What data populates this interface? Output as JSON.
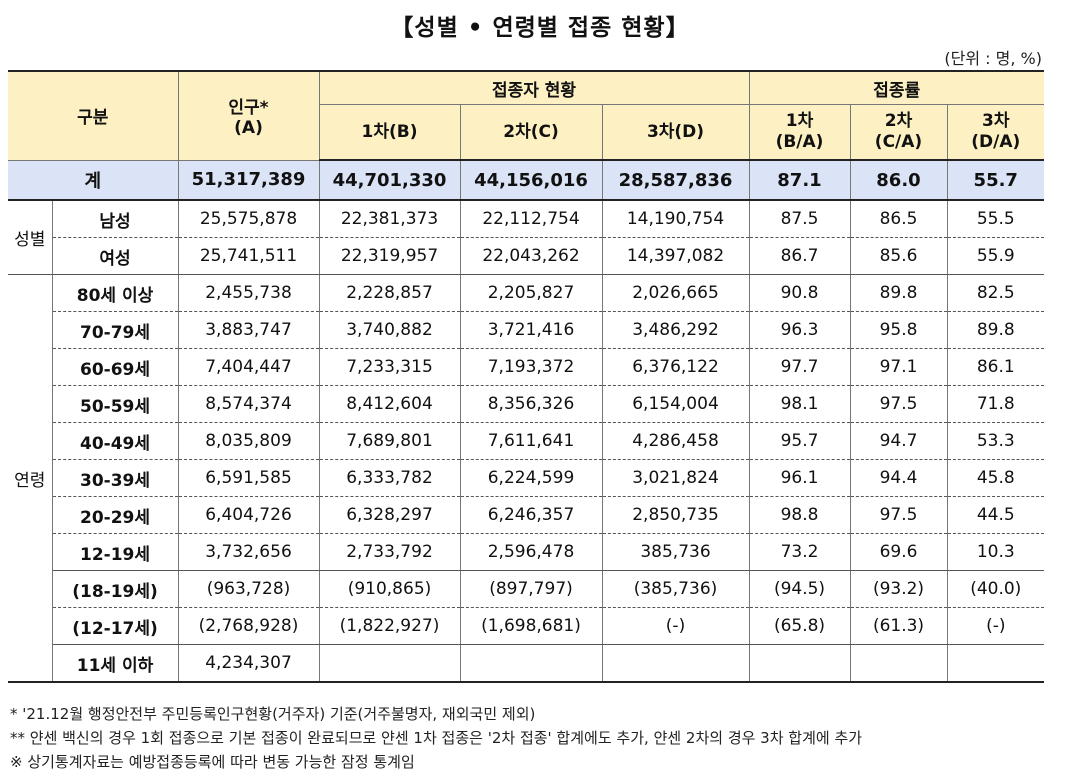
{
  "title": "【성별 • 연령별 접종 현황】",
  "unit": "(단위 : 명, %)",
  "header": {
    "category": "구분",
    "population": "인구*",
    "population_sub": "(A)",
    "vaccinated_group": "접종자 현황",
    "dose1": "1차(B)",
    "dose2": "2차(C)",
    "dose3": "3차(D)",
    "rate_group": "접종률",
    "rate1": "1차",
    "rate1_sub": "(B/A)",
    "rate2": "2차",
    "rate2_sub": "(C/A)",
    "rate3": "3차",
    "rate3_sub": "(D/A)"
  },
  "total": {
    "label": "계",
    "values": [
      "51,317,389",
      "44,701,330",
      "44,156,016",
      "28,587,836",
      "87.1",
      "86.0",
      "55.7"
    ]
  },
  "gender": {
    "group": "성별",
    "rows": [
      {
        "label": "남성",
        "values": [
          "25,575,878",
          "22,381,373",
          "22,112,754",
          "14,190,754",
          "87.5",
          "86.5",
          "55.5"
        ]
      },
      {
        "label": "여성",
        "values": [
          "25,741,511",
          "22,319,957",
          "22,043,262",
          "14,397,082",
          "86.7",
          "85.6",
          "55.9"
        ]
      }
    ]
  },
  "age": {
    "group": "연령",
    "rows": [
      {
        "label": "80세 이상",
        "values": [
          "2,455,738",
          "2,228,857",
          "2,205,827",
          "2,026,665",
          "90.8",
          "89.8",
          "82.5"
        ]
      },
      {
        "label": "70-79세",
        "values": [
          "3,883,747",
          "3,740,882",
          "3,721,416",
          "3,486,292",
          "96.3",
          "95.8",
          "89.8"
        ]
      },
      {
        "label": "60-69세",
        "values": [
          "7,404,447",
          "7,233,315",
          "7,193,372",
          "6,376,122",
          "97.7",
          "97.1",
          "86.1"
        ]
      },
      {
        "label": "50-59세",
        "values": [
          "8,574,374",
          "8,412,604",
          "8,356,326",
          "6,154,004",
          "98.1",
          "97.5",
          "71.8"
        ]
      },
      {
        "label": "40-49세",
        "values": [
          "8,035,809",
          "7,689,801",
          "7,611,641",
          "4,286,458",
          "95.7",
          "94.7",
          "53.3"
        ]
      },
      {
        "label": "30-39세",
        "values": [
          "6,591,585",
          "6,333,782",
          "6,224,599",
          "3,021,824",
          "96.1",
          "94.4",
          "45.8"
        ]
      },
      {
        "label": "20-29세",
        "values": [
          "6,404,726",
          "6,328,297",
          "6,246,357",
          "2,850,735",
          "98.8",
          "97.5",
          "44.5"
        ]
      },
      {
        "label": "12-19세",
        "values": [
          "3,732,656",
          "2,733,792",
          "2,596,478",
          "385,736",
          "73.2",
          "69.6",
          "10.3"
        ]
      }
    ],
    "subrows": [
      {
        "label": "(18-19세)",
        "values": [
          "(963,728)",
          "(910,865)",
          "(897,797)",
          "(385,736)",
          "(94.5)",
          "(93.2)",
          "(40.0)"
        ]
      },
      {
        "label": "(12-17세)",
        "values": [
          "(2,768,928)",
          "(1,822,927)",
          "(1,698,681)",
          "(-)",
          "(65.8)",
          "(61.3)",
          "(-)"
        ]
      }
    ],
    "last": {
      "label": "11세 이하",
      "values": [
        "4,234,307",
        "",
        "",
        "",
        "",
        "",
        ""
      ]
    }
  },
  "notes": [
    "* '21.12월 행정안전부 주민등록인구현황(거주자) 기준(거주불명자, 재외국민 제외)",
    "** 얀센 백신의 경우 1회 접종으로 기본 접종이 완료되므로 얀센 1차 접종은 '2차 접종' 합계에도 추가, 얀센 2차의 경우 3차 합계에 추가",
    "※ 상기통계자료는 예방접종등록에 따라 변동 가능한 잠정 통계임"
  ]
}
